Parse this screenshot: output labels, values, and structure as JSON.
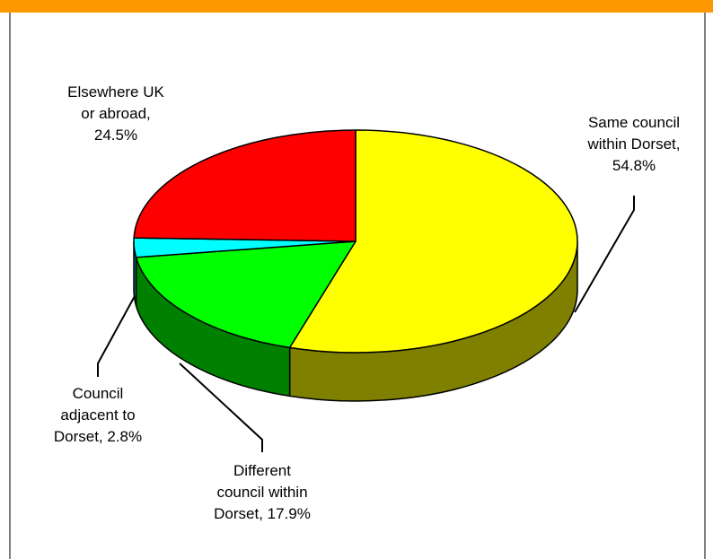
{
  "colors": {
    "header_bar": "#ff9900",
    "frame": "#808080"
  },
  "chart_data": {
    "type": "pie",
    "title": "",
    "view": "3d",
    "slices": [
      {
        "label_lines": [
          "Same council",
          "within Dorset,",
          "54.8%"
        ],
        "value": 54.8,
        "color": "#ffff00",
        "side_color": "#808000"
      },
      {
        "label_lines": [
          "Different",
          "council within",
          "Dorset, 17.9%"
        ],
        "value": 17.9,
        "color": "#00ff00",
        "side_color": "#008000"
      },
      {
        "label_lines": [
          "Council",
          "adjacent to",
          "Dorset, 2.8%"
        ],
        "value": 2.8,
        "color": "#00ffff",
        "side_color": "#008080"
      },
      {
        "label_lines": [
          "Elsewhere UK",
          "or abroad,",
          "24.5%"
        ],
        "value": 24.5,
        "color": "#ff0000",
        "side_color": "#800000"
      }
    ]
  }
}
